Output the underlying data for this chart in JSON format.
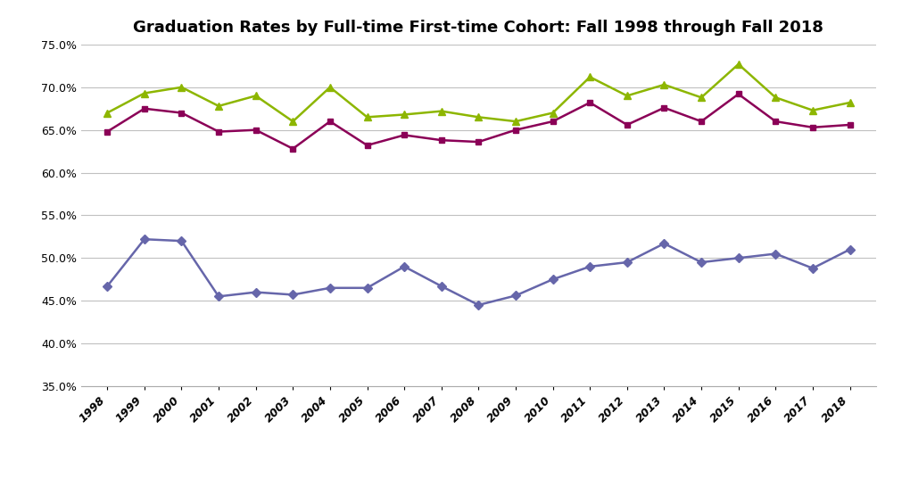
{
  "title": "Graduation Rates by Full-time First-time Cohort: Fall 1998 through Fall 2018",
  "years": [
    1998,
    1999,
    2000,
    2001,
    2002,
    2003,
    2004,
    2005,
    2006,
    2007,
    2008,
    2009,
    2010,
    2011,
    2012,
    2013,
    2014,
    2015,
    2016,
    2017,
    2018
  ],
  "six_year": [
    0.67,
    0.693,
    0.7,
    0.678,
    0.69,
    0.66,
    0.7,
    0.665,
    0.668,
    0.672,
    0.665,
    0.66,
    0.67,
    0.712,
    0.69,
    0.703,
    0.688,
    0.727,
    0.688,
    0.673,
    0.682
  ],
  "five_year": [
    0.648,
    0.675,
    0.67,
    0.648,
    0.65,
    0.628,
    0.66,
    0.632,
    0.644,
    0.638,
    0.636,
    0.65,
    0.66,
    0.682,
    0.656,
    0.676,
    0.66,
    0.692,
    0.66,
    0.653,
    0.656
  ],
  "four_year": [
    0.467,
    0.522,
    0.52,
    0.455,
    0.46,
    0.457,
    0.465,
    0.465,
    0.49,
    0.467,
    0.445,
    0.456,
    0.475,
    0.49,
    0.495,
    0.517,
    0.495,
    0.5,
    0.505,
    0.488,
    0.51
  ],
  "six_year_color": "#8db600",
  "five_year_color": "#8b0057",
  "four_year_color": "#6666aa",
  "ylim_min": 0.35,
  "ylim_max": 0.75,
  "yticks": [
    0.35,
    0.4,
    0.45,
    0.5,
    0.55,
    0.6,
    0.65,
    0.7,
    0.75
  ],
  "background_color": "#ffffff",
  "grid_color": "#c0c0c0"
}
